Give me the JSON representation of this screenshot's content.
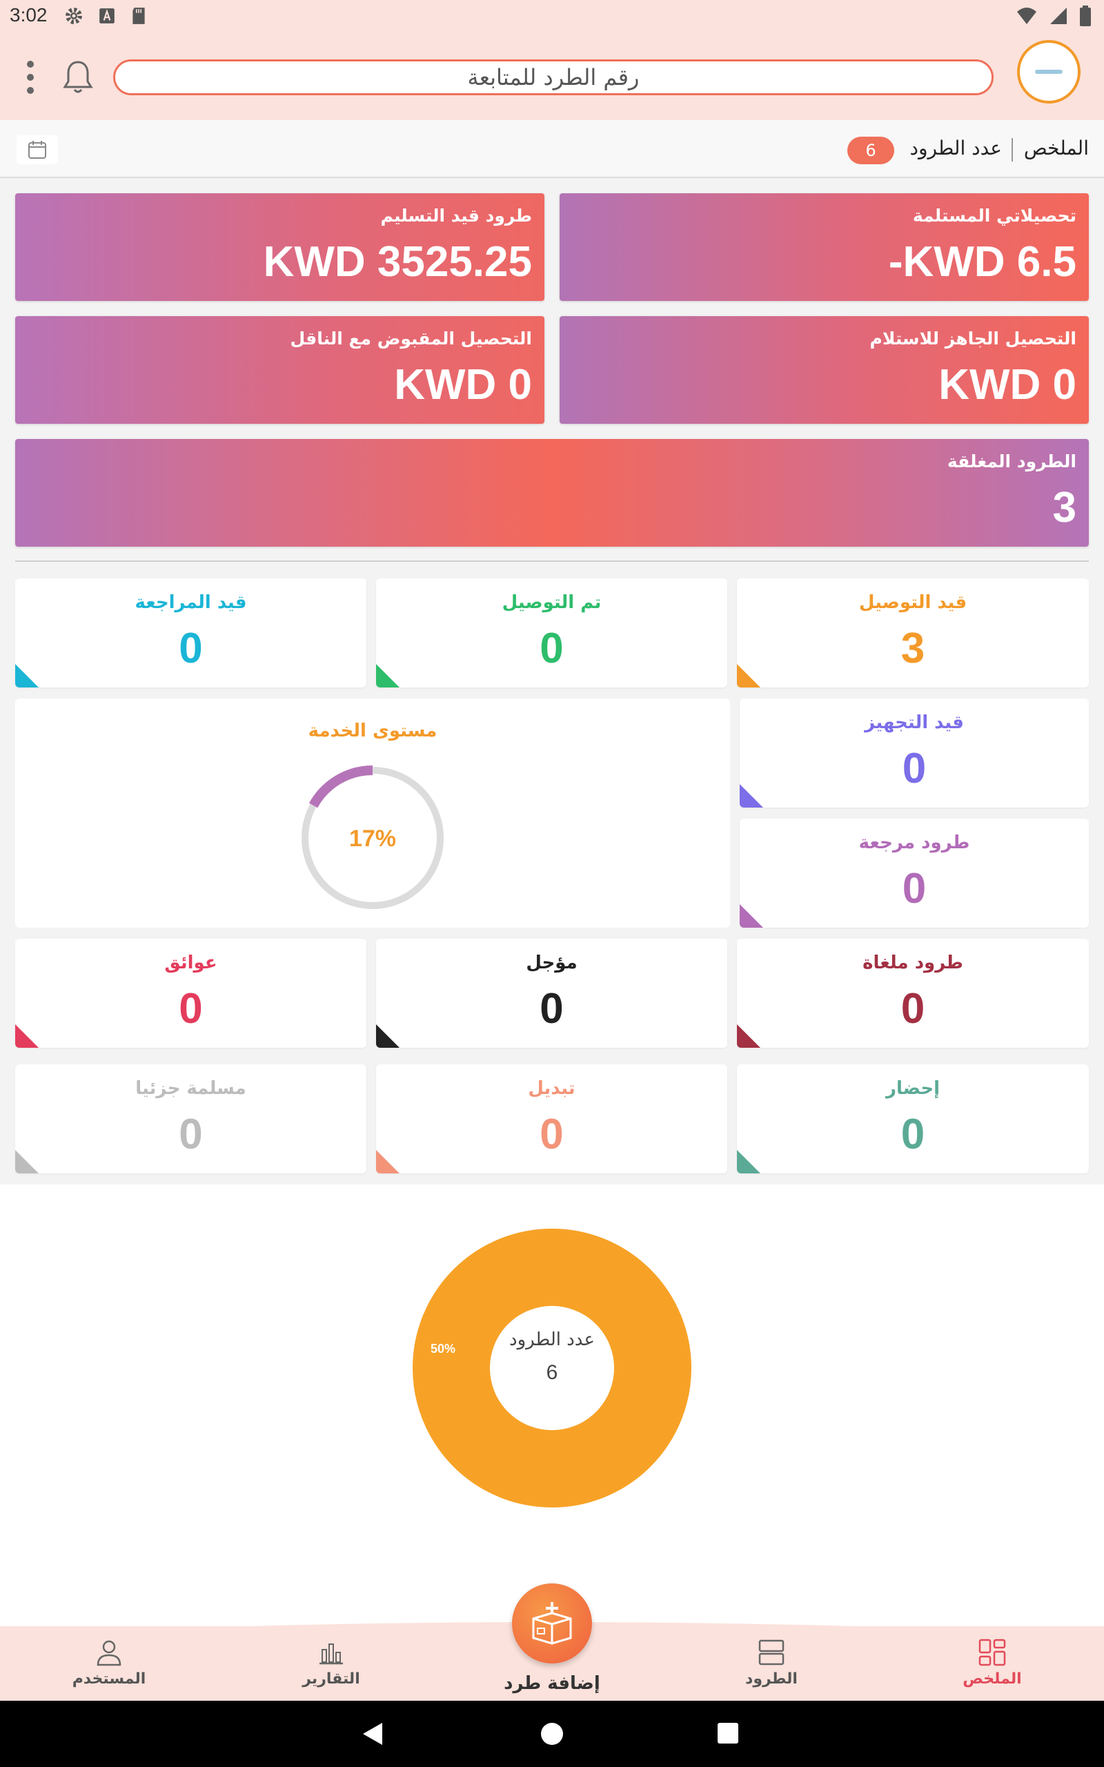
{
  "status_bar": {
    "time": "3:02",
    "icons_left": [
      "gear-icon",
      "text-a-icon",
      "sd-card-icon"
    ],
    "icons_right": [
      "wifi-icon",
      "signal-icon",
      "battery-icon"
    ]
  },
  "top_bar": {
    "search_placeholder": "رقم الطرد للمتابعة",
    "icons": [
      "menu-dots-icon",
      "bell-icon",
      "avatar"
    ]
  },
  "summary": {
    "title": "الملخص",
    "parcel_count_label": "عدد الطرود",
    "parcel_count": "6"
  },
  "finance_cards": [
    {
      "label": "تحصيلاتي المستلمة",
      "value": "-KWD 6.5"
    },
    {
      "label": "طرود قيد التسليم",
      "value": "KWD 3525.25"
    },
    {
      "label": "التحصيل الجاهز للاستلام",
      "value": "KWD 0"
    },
    {
      "label": "التحصيل المقبوض مع الناقل",
      "value": "KWD 0"
    },
    {
      "label": "الطرود المغلقة",
      "value": "3"
    }
  ],
  "stats": {
    "in_delivery": {
      "label": "قيد التوصيل",
      "value": "3",
      "color": "#f39a2a"
    },
    "delivered": {
      "label": "تم التوصيل",
      "value": "0",
      "color": "#2ebd6b"
    },
    "under_review": {
      "label": "قيد المراجعة",
      "value": "0",
      "color": "#1bb5d6"
    },
    "preparing": {
      "label": "قيد التجهيز",
      "value": "0",
      "color": "#7b6ee8"
    },
    "returned": {
      "label": "طرود مرجعة",
      "value": "0",
      "color": "#b26cb8"
    },
    "cancelled": {
      "label": "طرود ملغاة",
      "value": "0",
      "color": "#a33043"
    },
    "postponed": {
      "label": "مؤجل",
      "value": "0",
      "color": "#222222"
    },
    "obstacles": {
      "label": "عوائق",
      "value": "0",
      "color": "#e43c5c"
    },
    "pickup": {
      "label": "إحضار",
      "value": "0",
      "color": "#5aaa96"
    },
    "exchange": {
      "label": "تبديل",
      "value": "0",
      "color": "#f39479"
    },
    "partially_delivered": {
      "label": "مسلمة جزئيا",
      "value": "0",
      "color": "#bcbcbc"
    }
  },
  "service_level": {
    "title": "مستوى الخدمة",
    "value": "17%",
    "fraction": 0.17,
    "ring_color": "#b574b8",
    "track_color": "#dcdcdc"
  },
  "donut": {
    "center_label": "عدد الطرود",
    "center_value": "6",
    "slice_label": "50%",
    "color": "#f7a227"
  },
  "bottom_nav": {
    "summary": "الملخص",
    "parcels": "الطرود",
    "add_parcel": "إضافة طرد",
    "reports": "التقارير",
    "user": "المستخدم"
  }
}
